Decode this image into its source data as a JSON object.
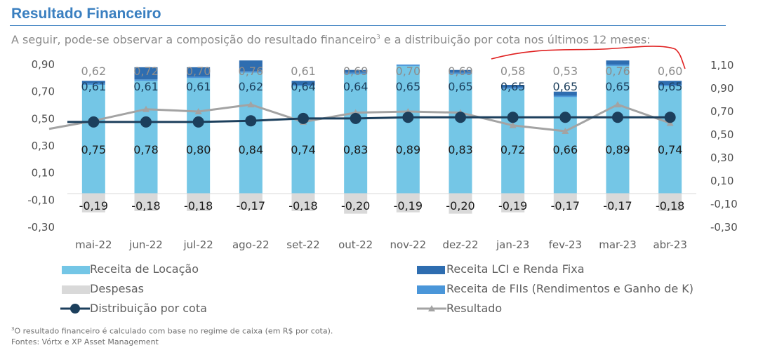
{
  "header": {
    "title": "Resultado Financeiro",
    "subtitle_pre": "A seguir, pode-se observar a composição do resultado financeiro",
    "subtitle_sup": "3",
    "subtitle_post": " e a distribuição por cota nos últimos 12 meses:"
  },
  "chart_data": {
    "type": "bar",
    "categories": [
      "mai-22",
      "jun-22",
      "jul-22",
      "ago-22",
      "set-22",
      "out-22",
      "nov-22",
      "dez-22",
      "jan-23",
      "fev-23",
      "mar-23",
      "abr-23"
    ],
    "left_axis": {
      "ticks": [
        "0,90",
        "0,70",
        "0,50",
        "0,30",
        "0,10",
        "-0,10",
        "-0,30"
      ],
      "ylim": [
        -0.3,
        0.9
      ]
    },
    "right_axis": {
      "ticks": [
        "1,10",
        "0,90",
        "0,70",
        "0,50",
        "0,30",
        "0,10",
        "-0,10",
        "-0,30"
      ],
      "ylim": [
        -0.3,
        1.1
      ]
    },
    "series": [
      {
        "name": "Receita de Locação",
        "kind": "bar",
        "axis": "left",
        "color": "#74c6e6",
        "values": [
          0.75,
          0.78,
          0.8,
          0.84,
          0.74,
          0.83,
          0.89,
          0.83,
          0.72,
          0.66,
          0.89,
          0.74
        ],
        "labels": [
          "0,75",
          "0,78",
          "0,80",
          "0,84",
          "0,74",
          "0,83",
          "0,89",
          "0,83",
          "0,72",
          "0,66",
          "0,89",
          "0,74"
        ]
      },
      {
        "name": "Receita LCI e Renda Fixa",
        "kind": "bar",
        "axis": "left",
        "color": "#2e6db0",
        "values": [
          0.02,
          0.09,
          0.07,
          0.08,
          0.03,
          0.02,
          0.0,
          0.02,
          0.02,
          0.03,
          0.03,
          0.03
        ]
      },
      {
        "name": "Despesas",
        "kind": "bar",
        "axis": "left",
        "color": "#d9d9d9",
        "values": [
          -0.19,
          -0.18,
          -0.18,
          -0.17,
          -0.18,
          -0.2,
          -0.19,
          -0.2,
          -0.19,
          -0.17,
          -0.17,
          -0.18
        ],
        "labels": [
          "-0,19",
          "-0,18",
          "-0,18",
          "-0,17",
          "-0,18",
          "-0,20",
          "-0,19",
          "-0,20",
          "-0,19",
          "-0,17",
          "-0,17",
          "-0,18"
        ]
      },
      {
        "name": "Receita de FIIs (Rendimentos e Ganho de K)",
        "kind": "bar",
        "axis": "left",
        "color": "#4a96d9",
        "values": [
          0.01,
          0.01,
          0.01,
          0.01,
          0.01,
          0.01,
          0.01,
          0.01,
          0.01,
          0.01,
          0.01,
          0.01
        ]
      },
      {
        "name": "Distribuição por cota",
        "kind": "line",
        "axis": "right",
        "color": "#1c3f5c",
        "values": [
          0.61,
          0.61,
          0.61,
          0.62,
          0.64,
          0.64,
          0.65,
          0.65,
          0.65,
          0.65,
          0.65,
          0.65
        ],
        "labels": [
          "0,61",
          "0,61",
          "0,61",
          "0,62",
          "0,64",
          "0,64",
          "0,65",
          "0,65",
          "0,65",
          "0,65",
          "0,65",
          "0,65"
        ]
      },
      {
        "name": "Resultado",
        "kind": "line",
        "axis": "right",
        "color": "#a3a3a3",
        "values": [
          0.62,
          0.72,
          0.7,
          0.76,
          0.61,
          0.69,
          0.7,
          0.69,
          0.58,
          0.53,
          0.76,
          0.6
        ],
        "labels": [
          "0,62",
          "0,72",
          "0,70",
          "0,76",
          "0,61",
          "0,69",
          "0,70",
          "0,69",
          "0,58",
          "0,53",
          "0,76",
          "0,60"
        ]
      }
    ],
    "grid": false,
    "legend_position": "bottom"
  },
  "footnote": {
    "sup": "3",
    "line1": "O resultado financeiro é calculado com base no regime de caixa (em R$ por cota).",
    "line2": "Fontes: Vórtx e XP Asset Management"
  }
}
